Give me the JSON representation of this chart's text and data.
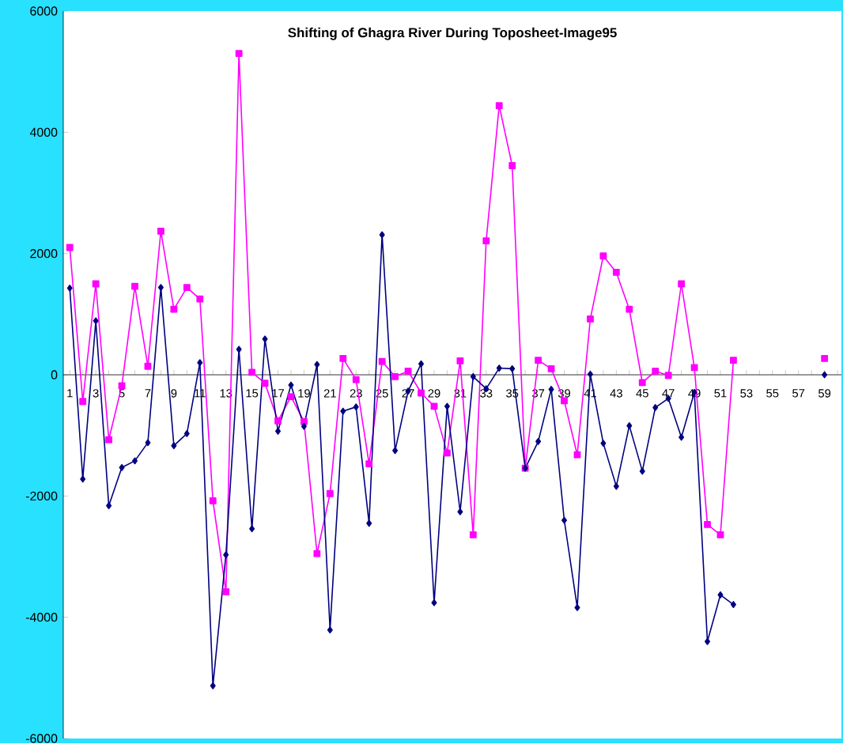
{
  "chart_data": {
    "type": "line",
    "title": "Shifting of Ghagra River During Toposheet-Image95",
    "categories": [
      "1",
      null,
      "3",
      null,
      "5",
      null,
      "7",
      null,
      "9",
      null,
      "11",
      null,
      "13",
      null,
      "15",
      null,
      "17",
      null,
      "19",
      null,
      "21",
      null,
      "23",
      null,
      "25",
      null,
      "27",
      null,
      "29",
      null,
      "31",
      null,
      "33",
      null,
      "35",
      null,
      "37",
      null,
      "39",
      null,
      "41",
      null,
      "43",
      null,
      "45",
      null,
      "47",
      null,
      "49",
      null,
      "51",
      null,
      "53",
      null,
      "55",
      null,
      "57",
      null,
      "59",
      null
    ],
    "series": [
      {
        "color": "#000080",
        "marker": "diamond",
        "values": [
          1430,
          -1720,
          890,
          -2160,
          -1530,
          -1420,
          -1120,
          1440,
          -1170,
          -970,
          200,
          -5130,
          -2970,
          420,
          -2540,
          590,
          -930,
          -170,
          -850,
          170,
          -4210,
          -600,
          -530,
          -2450,
          2310,
          -1250,
          -270,
          180,
          -3760,
          -520,
          -2260,
          -30,
          -230,
          110,
          100,
          -1540,
          -1100,
          -240,
          -2400,
          -3840,
          10,
          -1130,
          -1840,
          -840,
          -1590,
          -540,
          -390,
          -1030,
          -290,
          -4400,
          -3630,
          -3790,
          null,
          null,
          null,
          null,
          null,
          null,
          0,
          null
        ]
      },
      {
        "color": "#ff00ff",
        "marker": "square",
        "values": [
          2100,
          -440,
          1500,
          -1070,
          -180,
          1460,
          140,
          2370,
          1080,
          1440,
          1250,
          -2080,
          -3580,
          5300,
          40,
          -140,
          -760,
          -360,
          -770,
          -2950,
          -1960,
          270,
          -80,
          -1470,
          220,
          -30,
          60,
          -300,
          -520,
          -1290,
          230,
          -2640,
          2210,
          4440,
          3450,
          -1540,
          240,
          100,
          -430,
          -1320,
          920,
          1960,
          1690,
          1080,
          -130,
          60,
          -10,
          1500,
          120,
          -2470,
          -2640,
          240,
          null,
          null,
          null,
          null,
          null,
          null,
          270,
          null
        ]
      }
    ],
    "ylim": [
      -6000,
      6000
    ],
    "yticks": [
      -6000,
      -4000,
      -2000,
      0,
      2000,
      4000,
      6000
    ],
    "grid": false,
    "line_style": "solid"
  }
}
